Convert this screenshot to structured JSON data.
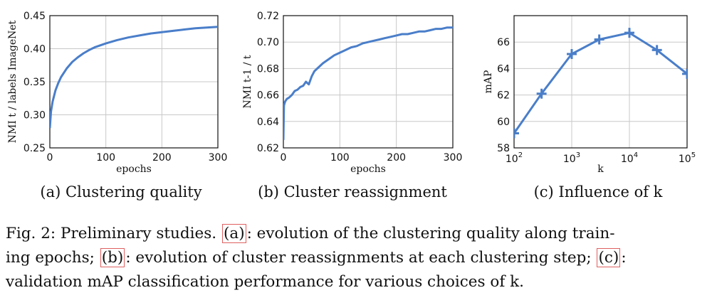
{
  "subcaptions": [
    "(a) Clustering quality",
    "(b) Cluster reassignment",
    "(c) Influence of k"
  ],
  "caption": {
    "prefix": "Fig. 2: Preliminary studies. ",
    "ref_a": "(a)",
    "text_a": ": evolution of the clustering quality along train-",
    "line2_start": "ing epochs; ",
    "ref_b": "(b)",
    "text_b": ": evolution of cluster reassignments at each clustering step; ",
    "ref_c": "(c)",
    "text_c": ":",
    "line3": "validation mAP classification performance for various choices of k."
  },
  "colors": {
    "line": "#4a7ec9",
    "grid": "#c8c8c8",
    "axis": "#111111"
  },
  "chart_data": [
    {
      "type": "line",
      "xlabel": "epochs",
      "ylabel": "NMI t / labels ImageNet",
      "xlim": [
        0,
        300
      ],
      "ylim": [
        0.25,
        0.45
      ],
      "xticks": [
        0,
        100,
        200,
        300
      ],
      "xtick_labels": [
        "0",
        "100",
        "200",
        "300"
      ],
      "yticks": [
        0.25,
        0.3,
        0.35,
        0.4,
        0.45
      ],
      "ytick_labels": [
        "0.25",
        "0.30",
        "0.35",
        "0.40",
        "0.45"
      ],
      "grid": true,
      "x": [
        0,
        2,
        5,
        10,
        15,
        20,
        30,
        40,
        50,
        60,
        70,
        80,
        90,
        100,
        120,
        140,
        160,
        180,
        200,
        220,
        240,
        260,
        280,
        300
      ],
      "y": [
        0.28,
        0.305,
        0.32,
        0.337,
        0.348,
        0.357,
        0.37,
        0.38,
        0.387,
        0.393,
        0.398,
        0.402,
        0.405,
        0.408,
        0.413,
        0.417,
        0.42,
        0.423,
        0.425,
        0.427,
        0.429,
        0.431,
        0.432,
        0.433
      ]
    },
    {
      "type": "line",
      "xlabel": "epochs",
      "ylabel": "NMI t-1 / t",
      "xlim": [
        0,
        300
      ],
      "ylim": [
        0.62,
        0.72
      ],
      "xticks": [
        0,
        100,
        200,
        300
      ],
      "xtick_labels": [
        "0",
        "100",
        "200",
        "300"
      ],
      "yticks": [
        0.62,
        0.64,
        0.66,
        0.68,
        0.7,
        0.72
      ],
      "ytick_labels": [
        "0.62",
        "0.64",
        "0.66",
        "0.68",
        "0.70",
        "0.72"
      ],
      "grid": true,
      "x": [
        0,
        1,
        3,
        6,
        10,
        15,
        20,
        25,
        30,
        35,
        40,
        45,
        50,
        55,
        60,
        70,
        80,
        90,
        100,
        110,
        120,
        130,
        140,
        150,
        160,
        170,
        180,
        190,
        200,
        210,
        220,
        230,
        240,
        250,
        260,
        270,
        280,
        290,
        300
      ],
      "y": [
        0.626,
        0.652,
        0.655,
        0.657,
        0.658,
        0.66,
        0.663,
        0.664,
        0.666,
        0.667,
        0.67,
        0.668,
        0.674,
        0.678,
        0.68,
        0.684,
        0.687,
        0.69,
        0.692,
        0.694,
        0.696,
        0.697,
        0.699,
        0.7,
        0.701,
        0.702,
        0.703,
        0.704,
        0.705,
        0.706,
        0.706,
        0.707,
        0.708,
        0.708,
        0.709,
        0.71,
        0.71,
        0.711,
        0.711
      ]
    },
    {
      "type": "line",
      "xlabel": "k",
      "ylabel": "mAP",
      "xscale": "log",
      "xlim": [
        100,
        100000
      ],
      "ylim": [
        58,
        68
      ],
      "xticks": [
        100,
        1000,
        10000,
        100000
      ],
      "xtick_base": "10",
      "xtick_exponents": [
        "2",
        "3",
        "4",
        "5"
      ],
      "yticks": [
        58,
        60,
        62,
        64,
        66
      ],
      "ytick_labels": [
        "58",
        "60",
        "62",
        "64",
        "66"
      ],
      "grid": true,
      "marker": "+",
      "x": [
        100,
        300,
        1000,
        3000,
        10000,
        30000,
        100000
      ],
      "y": [
        59.1,
        62.1,
        65.1,
        66.2,
        66.7,
        65.4,
        63.6
      ]
    }
  ]
}
